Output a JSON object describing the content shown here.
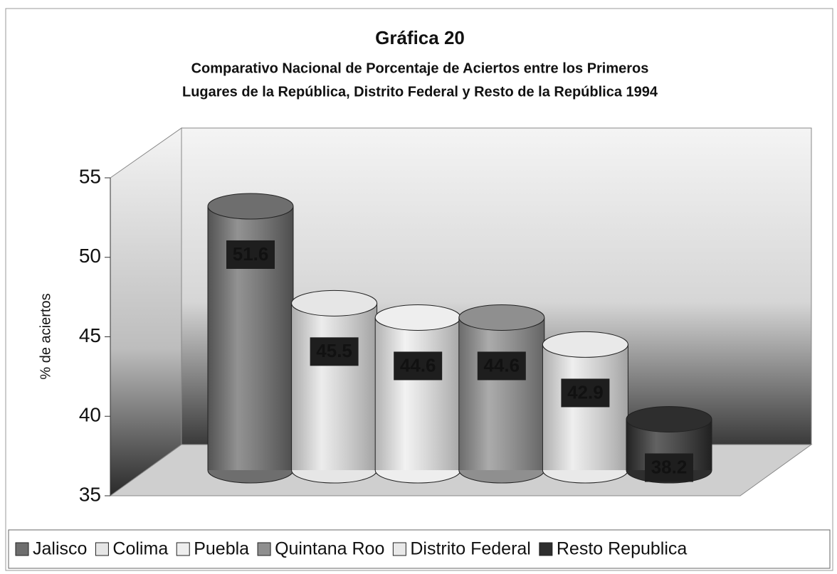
{
  "chart_data": {
    "type": "bar3d",
    "title": "Gráfica 20",
    "subtitle": [
      "Comparativo Nacional de Porcentaje de Aciertos entre los Primeros",
      "Lugares de la República, Distrito Federal y Resto de la República 1994"
    ],
    "y_label": "% de aciertos",
    "categories": [
      "Jalisco",
      "Colima",
      "Puebla",
      "Quintana Roo",
      "Distrito Federal",
      "Resto Republica"
    ],
    "values": [
      51.6,
      45.5,
      44.6,
      44.6,
      42.9,
      38.2
    ],
    "colors": [
      "#6e6e6e",
      "#e6e6e6",
      "#eeeeee",
      "#8f8f8f",
      "#e9e9e9",
      "#2e2e2e"
    ],
    "ylim": [
      35,
      55
    ],
    "yticks": [
      35,
      40,
      45,
      50,
      55
    ],
    "legend": "bottom"
  }
}
